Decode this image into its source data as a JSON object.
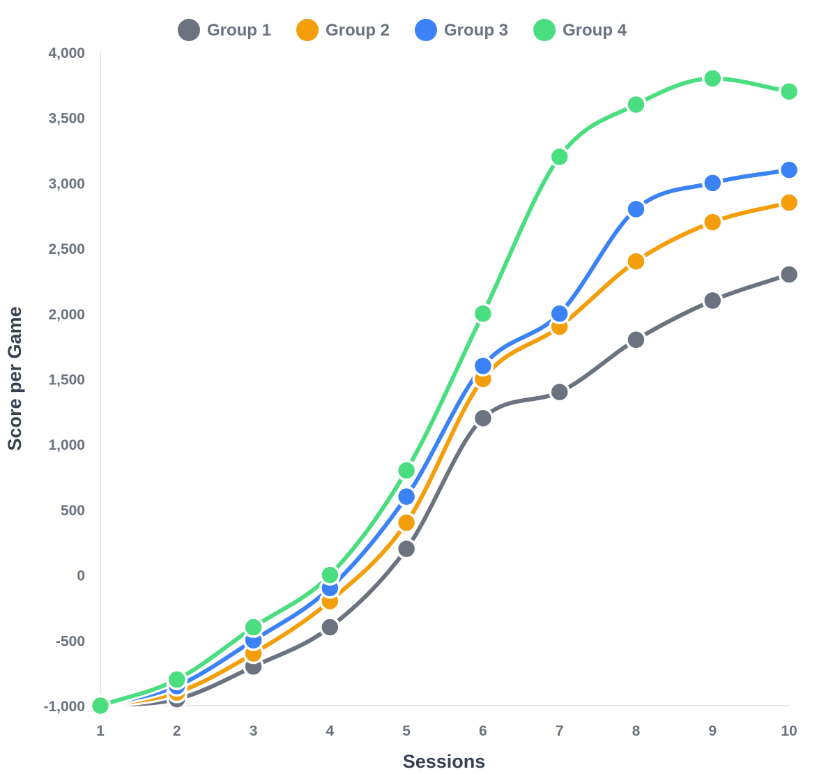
{
  "chart_data": {
    "type": "line",
    "title": "",
    "xlabel": "Sessions",
    "ylabel": "Score per Game",
    "x": [
      1,
      2,
      3,
      4,
      5,
      6,
      7,
      8,
      9,
      10
    ],
    "x_tick_labels": [
      "1",
      "2",
      "3",
      "4",
      "5",
      "6",
      "7",
      "8",
      "9",
      "10"
    ],
    "ylim": [
      -1000,
      4000
    ],
    "y_ticks": [
      -1000,
      -500,
      0,
      500,
      1000,
      1500,
      2000,
      2500,
      3000,
      3500,
      4000
    ],
    "y_tick_labels": [
      "-1,000",
      "-500",
      "0",
      "500",
      "1,000",
      "1,500",
      "2,000",
      "2,500",
      "3,000",
      "3,500",
      "4,000"
    ],
    "grid": false,
    "legend_position": "top-center",
    "smooth": true,
    "series": [
      {
        "name": "Group 1",
        "color": "#6b7280",
        "values": [
          -1000,
          -950,
          -700,
          -400,
          200,
          1200,
          1400,
          1800,
          2100,
          2300
        ]
      },
      {
        "name": "Group 2",
        "color": "#f59e0b",
        "values": [
          -1000,
          -900,
          -600,
          -200,
          400,
          1500,
          1900,
          2400,
          2700,
          2850
        ]
      },
      {
        "name": "Group 3",
        "color": "#3b82f6",
        "values": [
          -1000,
          -850,
          -500,
          -100,
          600,
          1600,
          2000,
          2800,
          3000,
          3100
        ]
      },
      {
        "name": "Group 4",
        "color": "#4ade80",
        "values": [
          -1000,
          -800,
          -400,
          0,
          800,
          2000,
          3200,
          3600,
          3800,
          3700
        ]
      }
    ]
  }
}
